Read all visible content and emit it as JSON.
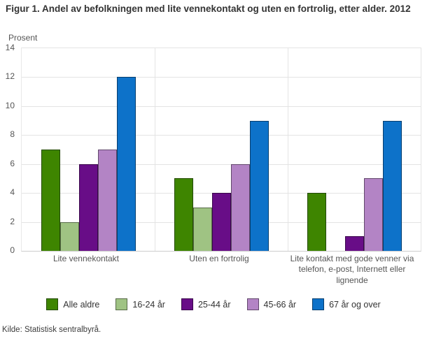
{
  "title": "Figur 1. Andel av befolkningen med lite vennekontakt og uten en fortrolig, etter alder. 2012",
  "y_axis_title": "Prosent",
  "source": "Kilde: Statistisk sentralbyrå.",
  "chart_data": {
    "type": "bar",
    "categories": [
      "Lite vennekontakt",
      "Uten en fortrolig",
      "Lite kontakt med gode venner via telefon, e-post, Internett eller lignende"
    ],
    "series": [
      {
        "name": "Alle aldre",
        "color": "#3e8500",
        "values": [
          7,
          5,
          4
        ]
      },
      {
        "name": "16-24 år",
        "color": "#9fc383",
        "values": [
          2,
          3,
          0
        ]
      },
      {
        "name": "25-44 år",
        "color": "#680d87",
        "values": [
          6,
          4,
          1
        ]
      },
      {
        "name": "45-66 år",
        "color": "#b384c5",
        "values": [
          7,
          6,
          5
        ]
      },
      {
        "name": "67 år og over",
        "color": "#0d72c9",
        "values": [
          12,
          9,
          9
        ]
      }
    ],
    "ylim": [
      0,
      14
    ],
    "yticks": [
      0,
      2,
      4,
      6,
      8,
      10,
      12,
      14
    ],
    "grid": true,
    "legend_position": "bottom",
    "bar_border_color": "rgba(0,0,0,0.45)",
    "grid_color": "#e4e4e4"
  }
}
